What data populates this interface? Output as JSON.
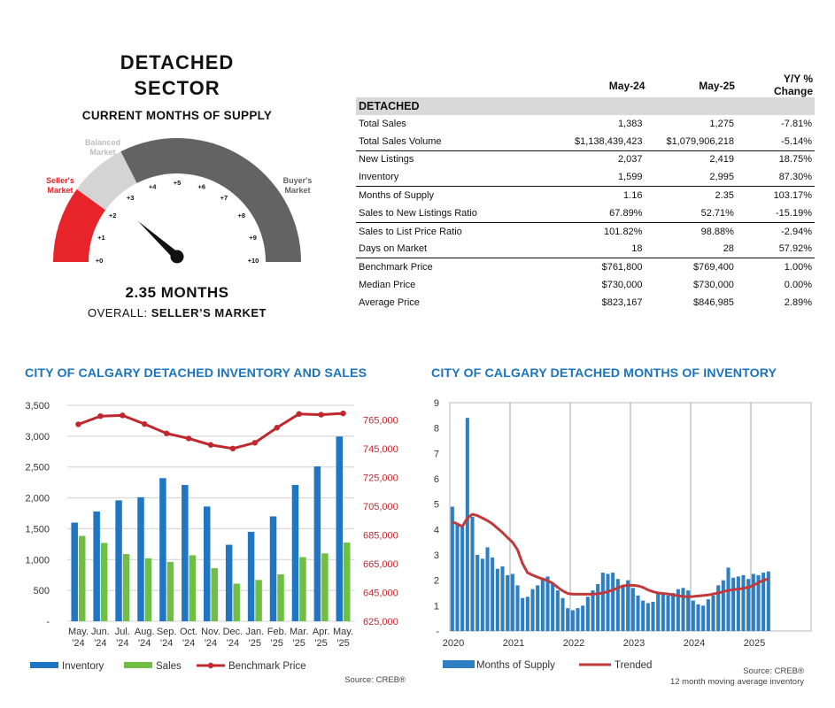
{
  "header": {
    "title_line1": "DETACHED",
    "title_line2": "SECTOR"
  },
  "gauge": {
    "subtitle": "CURRENT MONTHS OF SUPPLY",
    "value": 2.35,
    "value_label": "2.35 MONTHS",
    "overall_prefix": "OVERALL:",
    "overall_value": "SELLER’S MARKET",
    "labels": {
      "sellers": [
        "Seller's",
        "Market"
      ],
      "balanced": [
        "Balanced",
        "Market"
      ],
      "buyers": [
        "Buyer's",
        "Market"
      ]
    },
    "ticks": [
      "+0",
      "+1",
      "+2",
      "+3",
      "+4",
      "+5",
      "+6",
      "+7",
      "+8",
      "+9",
      "+10"
    ],
    "colors": {
      "sellers": "#e8242b",
      "balanced": "#d4d4d4",
      "buyers": "#636363",
      "needle": "#111111"
    }
  },
  "stats_table": {
    "headers": [
      "",
      "May-24",
      "May-25",
      "Y/Y %",
      "Change"
    ],
    "section": "DETACHED",
    "rows": [
      [
        "Total Sales",
        "1,383",
        "1,275",
        "-7.81%"
      ],
      [
        "Total Sales Volume",
        "$1,138,439,423",
        "$1,079,906,218",
        "-5.14%"
      ],
      [
        "New Listings",
        "2,037",
        "2,419",
        "18.75%"
      ],
      [
        "Inventory",
        "1,599",
        "2,995",
        "87.30%"
      ],
      [
        "Months of Supply",
        "1.16",
        "2.35",
        "103.17%"
      ],
      [
        "Sales to New Listings Ratio",
        "67.89%",
        "52.71%",
        "-15.19%"
      ],
      [
        "Sales to List Price Ratio",
        "101.82%",
        "98.88%",
        "-2.94%"
      ],
      [
        "Days on Market",
        "18",
        "28",
        "57.92%"
      ],
      [
        "Benchmark Price",
        "$761,800",
        "$769,400",
        "1.00%"
      ],
      [
        "Median Price",
        "$730,000",
        "$730,000",
        "0.00%"
      ],
      [
        "Average Price",
        "$823,167",
        "$846,985",
        "2.89%"
      ]
    ]
  },
  "chart_data": [
    {
      "type": "bar",
      "title": "CITY OF CALGARY DETACHED INVENTORY AND SALES",
      "categories": [
        [
          "May.",
          "'24"
        ],
        [
          "Jun.",
          "'24"
        ],
        [
          "Jul.",
          "'24"
        ],
        [
          "Aug.",
          "'24"
        ],
        [
          "Sep.",
          "'24"
        ],
        [
          "Oct.",
          "'24"
        ],
        [
          "Nov.",
          "'24"
        ],
        [
          "Dec.",
          "'24"
        ],
        [
          "Jan.",
          "'25"
        ],
        [
          "Feb.",
          "'25"
        ],
        [
          "Mar.",
          "'25"
        ],
        [
          "Apr.",
          "'25"
        ],
        [
          "May.",
          "'25"
        ]
      ],
      "series": [
        {
          "name": "Inventory",
          "type": "bar",
          "axis": "left",
          "color": "#1f77c4",
          "values": [
            1599,
            1780,
            1960,
            2010,
            2320,
            2210,
            1860,
            1240,
            1450,
            1700,
            2210,
            2510,
            2995
          ]
        },
        {
          "name": "Sales",
          "type": "bar",
          "axis": "left",
          "color": "#70bf44",
          "values": [
            1383,
            1270,
            1090,
            1020,
            960,
            1070,
            860,
            610,
            670,
            760,
            1040,
            1100,
            1275
          ]
        },
        {
          "name": "Benchmark Price",
          "type": "line",
          "axis": "right",
          "color": "#c0282d",
          "values": [
            761800,
            767500,
            768000,
            762000,
            755500,
            752000,
            747500,
            745000,
            749000,
            759500,
            769000,
            768500,
            769400
          ]
        }
      ],
      "ylim": [
        0,
        3500
      ],
      "yticks": [
        "-",
        "500",
        "1,000",
        "1,500",
        "2,000",
        "2,500",
        "3,000",
        "3,500"
      ],
      "y2lim": [
        625000,
        775000
      ],
      "y2ticks": [
        "625,000",
        "645,000",
        "665,000",
        "685,000",
        "705,000",
        "725,000",
        "745,000",
        "765,000"
      ],
      "grid": "horizontal",
      "legend": "bottom",
      "source": "Source: CREB®"
    },
    {
      "type": "bar",
      "title": "CITY OF CALGARY DETACHED MONTHS OF INVENTORY",
      "x_start": "2020-01",
      "xticks": [
        "2020",
        "2021",
        "2022",
        "2023",
        "2024",
        "2025"
      ],
      "ylim": [
        0,
        9
      ],
      "yticks": [
        "-",
        "1",
        "2",
        "3",
        "4",
        "5",
        "6",
        "7",
        "8",
        "9"
      ],
      "series": [
        {
          "name": "Months of Supply",
          "type": "bar",
          "color": "#2e7fc2",
          "values": [
            4.9,
            4.2,
            4.1,
            8.4,
            4.5,
            3.0,
            2.85,
            3.3,
            2.9,
            2.45,
            2.55,
            2.2,
            2.25,
            1.8,
            1.3,
            1.35,
            1.65,
            1.8,
            2.1,
            2.15,
            1.9,
            1.6,
            1.3,
            0.9,
            0.82,
            0.9,
            1.0,
            1.35,
            1.6,
            1.85,
            2.3,
            2.25,
            2.3,
            2.05,
            1.75,
            2.0,
            1.7,
            1.4,
            1.2,
            1.1,
            1.15,
            1.5,
            1.5,
            1.4,
            1.5,
            1.65,
            1.7,
            1.6,
            1.2,
            1.05,
            1.0,
            1.25,
            1.4,
            1.8,
            2.0,
            2.5,
            2.1,
            2.15,
            2.2,
            2.05,
            2.25,
            2.2,
            2.3,
            2.35
          ]
        },
        {
          "name": "Trended",
          "type": "line",
          "color": "#c0393b",
          "values": [
            4.3,
            4.22,
            4.12,
            4.45,
            4.6,
            4.55,
            4.45,
            4.35,
            4.22,
            4.05,
            3.88,
            3.68,
            3.5,
            3.2,
            2.65,
            2.3,
            2.2,
            2.12,
            2.05,
            1.98,
            1.88,
            1.72,
            1.58,
            1.48,
            1.45,
            1.45,
            1.45,
            1.45,
            1.45,
            1.47,
            1.5,
            1.55,
            1.62,
            1.7,
            1.78,
            1.8,
            1.8,
            1.78,
            1.72,
            1.62,
            1.55,
            1.5,
            1.48,
            1.46,
            1.42,
            1.39,
            1.36,
            1.35,
            1.36,
            1.38,
            1.4,
            1.42,
            1.46,
            1.5,
            1.55,
            1.6,
            1.63,
            1.65,
            1.68,
            1.72,
            1.8,
            1.9,
            2.0,
            2.05
          ]
        }
      ],
      "grid": "vertical",
      "legend": "bottom",
      "source": "Source: CREB®",
      "note": "12 month moving average inventory"
    }
  ]
}
